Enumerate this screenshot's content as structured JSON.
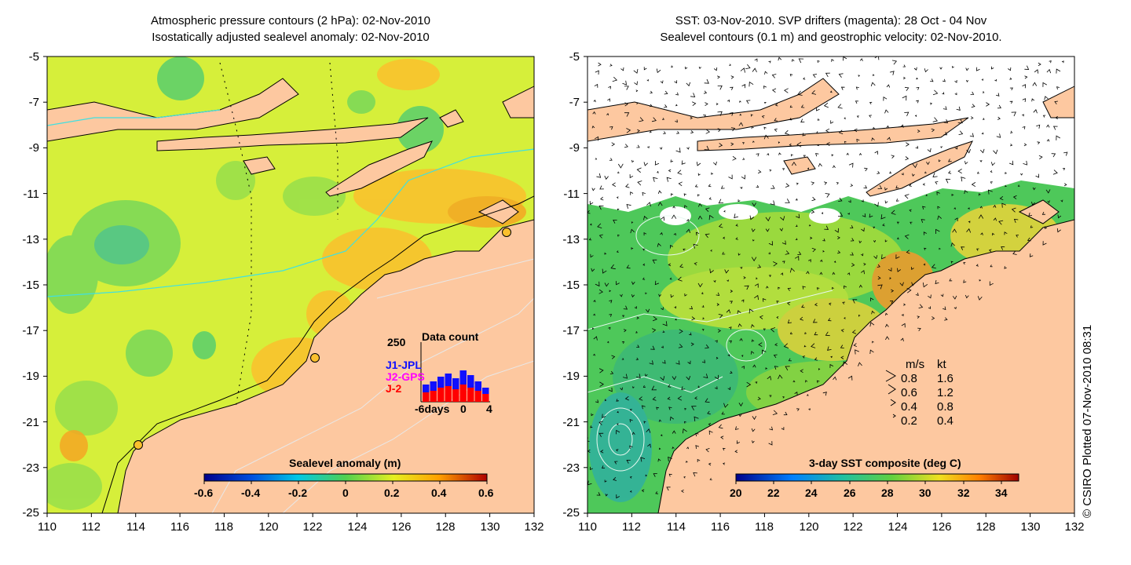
{
  "left_panel": {
    "title_line1": "Atmospheric pressure contours (2 hPa): 02-Nov-2010",
    "title_line2": "Isostatically adjusted sealevel anomaly: 02-Nov-2010",
    "colorbar": {
      "label": "Sealevel anomaly (m)",
      "ticks": [
        "-0.6",
        "-0.4",
        "-0.2",
        "0",
        "0.2",
        "0.4",
        "0.6"
      ]
    },
    "data_count": {
      "max_label": "250",
      "title": "Data count",
      "series": [
        {
          "name": "J1-JPL",
          "color": "#1010ff"
        },
        {
          "name": "J2-GPS",
          "color": "#ff00ff"
        },
        {
          "name": "J-2",
          "color": "#ff0000"
        }
      ],
      "x_start": "-6days",
      "x_mid": "0",
      "x_end": "4"
    }
  },
  "right_panel": {
    "title_line1": "SST: 03-Nov-2010. SVP drifters (magenta): 28 Oct - 04 Nov",
    "title_line2": "Sealevel contours (0.1 m) and geostrophic velocity: 02-Nov-2010.",
    "colorbar": {
      "label": "3-day SST composite (deg C)",
      "ticks": [
        "20",
        "22",
        "24",
        "26",
        "28",
        "30",
        "32",
        "34"
      ]
    },
    "velocity_key": {
      "header_ms": "m/s",
      "header_kt": "kt",
      "rows": [
        {
          "ms": "0.8",
          "kt": "1.6"
        },
        {
          "ms": "0.6",
          "kt": "1.2"
        },
        {
          "ms": "0.4",
          "kt": "0.8"
        },
        {
          "ms": "0.2",
          "kt": "0.4"
        }
      ]
    }
  },
  "axes": {
    "y_ticks": [
      "-5",
      "-7",
      "-9",
      "-11",
      "-13",
      "-15",
      "-17",
      "-19",
      "-21",
      "-23",
      "-25"
    ],
    "x_ticks": [
      "110",
      "112",
      "114",
      "116",
      "118",
      "120",
      "122",
      "124",
      "126",
      "128",
      "130",
      "132"
    ]
  },
  "credit": "© CSIRO Plotted 07-Nov-2010 08:31",
  "colors": {
    "land": "#fdc8a0",
    "ocean_anomaly": "#d6ef3a",
    "ocean_sst": "#4ec85a",
    "cloud": "#ffffff"
  }
}
